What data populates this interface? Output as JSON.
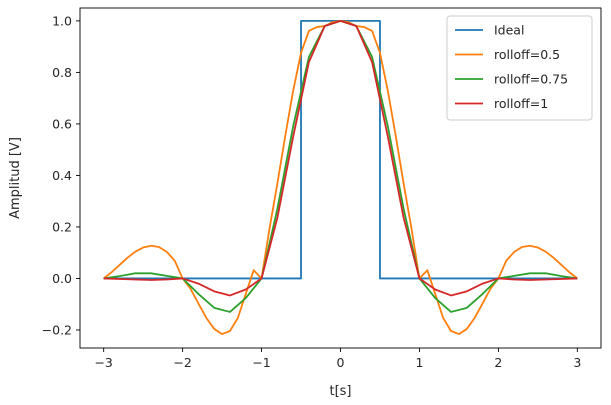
{
  "chart_data": {
    "type": "line",
    "title": "",
    "xlabel": "t[s]",
    "ylabel": "Amplitud [V]",
    "xlim": [
      -3.3,
      3.3
    ],
    "ylim": [
      -0.27,
      1.05
    ],
    "xticks": [
      -3,
      -2,
      -1,
      0,
      1,
      2,
      3
    ],
    "xtick_labels": [
      "−3",
      "−2",
      "−1",
      "0",
      "1",
      "2",
      "3"
    ],
    "yticks": [
      -0.2,
      0.0,
      0.2,
      0.4,
      0.6,
      0.8,
      1.0
    ],
    "ytick_labels": [
      "−0.2",
      "0.0",
      "0.2",
      "0.4",
      "0.6",
      "0.8",
      "1.0"
    ],
    "grid": false,
    "legend_position": "top-right",
    "series": [
      {
        "name": "Ideal",
        "color": "#1f77b4",
        "x": [
          -3,
          -0.5,
          -0.5,
          0.5,
          0.5,
          3
        ],
        "y": [
          0,
          0,
          1,
          1,
          0,
          0
        ]
      },
      {
        "name": "rolloff=0.5",
        "color": "#ff7f0e",
        "x": [
          -3.0,
          -2.9,
          -2.8,
          -2.7,
          -2.6,
          -2.5,
          -2.4,
          -2.3,
          -2.2,
          -2.1,
          -2.0,
          -1.9,
          -1.8,
          -1.7,
          -1.6,
          -1.5,
          -1.4,
          -1.3,
          -1.2,
          -1.1,
          -1.0,
          -0.9,
          -0.8,
          -0.7,
          -0.6,
          -0.5,
          -0.4,
          -0.3,
          -0.2,
          -0.1,
          0.0,
          0.1,
          0.2,
          0.3,
          0.4,
          0.5,
          0.6,
          0.7,
          0.8,
          0.9,
          1.0,
          1.1,
          1.2,
          1.3,
          1.4,
          1.5,
          1.6,
          1.7,
          1.8,
          1.9,
          2.0,
          2.1,
          2.2,
          2.3,
          2.4,
          2.5,
          2.6,
          2.7,
          2.8,
          2.9,
          3.0
        ],
        "y": [
          0.0,
          0.024,
          0.052,
          0.08,
          0.104,
          0.12,
          0.127,
          0.122,
          0.103,
          0.069,
          0.0,
          -0.04,
          -0.097,
          -0.153,
          -0.196,
          -0.216,
          -0.204,
          -0.153,
          -0.06,
          0.032,
          0.0,
          0.192,
          0.368,
          0.553,
          0.728,
          0.876,
          0.961,
          0.976,
          0.98,
          0.995,
          1.0,
          0.995,
          0.98,
          0.976,
          0.961,
          0.876,
          0.728,
          0.553,
          0.368,
          0.192,
          0.0,
          0.032,
          -0.06,
          -0.153,
          -0.204,
          -0.216,
          -0.196,
          -0.153,
          -0.097,
          -0.04,
          0.0,
          0.069,
          0.103,
          0.122,
          0.127,
          0.12,
          0.104,
          0.08,
          0.052,
          0.024,
          0.0
        ]
      },
      {
        "name": "rolloff=0.75",
        "color": "#2ca02c",
        "x": [
          -3.0,
          -2.8,
          -2.6,
          -2.4,
          -2.2,
          -2.0,
          -1.8,
          -1.6,
          -1.4,
          -1.2,
          -1.0,
          -0.8,
          -0.6,
          -0.4,
          -0.2,
          0.0,
          0.2,
          0.4,
          0.6,
          0.8,
          1.0,
          1.2,
          1.4,
          1.6,
          1.8,
          2.0,
          2.2,
          2.4,
          2.6,
          2.8,
          3.0
        ],
        "y": [
          0.0,
          0.009,
          0.02,
          0.02,
          0.01,
          0.0,
          -0.06,
          -0.114,
          -0.13,
          -0.076,
          0.0,
          0.27,
          0.59,
          0.86,
          0.98,
          1.0,
          0.98,
          0.86,
          0.59,
          0.27,
          0.0,
          -0.076,
          -0.13,
          -0.114,
          -0.06,
          0.0,
          0.01,
          0.02,
          0.02,
          0.009,
          0.0
        ]
      },
      {
        "name": "rolloff=1",
        "color": "#d62728",
        "x": [
          -3.0,
          -2.8,
          -2.6,
          -2.4,
          -2.2,
          -2.0,
          -1.8,
          -1.6,
          -1.4,
          -1.2,
          -1.0,
          -0.8,
          -0.6,
          -0.4,
          -0.2,
          0.0,
          0.2,
          0.4,
          0.6,
          0.8,
          1.0,
          1.2,
          1.4,
          1.6,
          1.8,
          2.0,
          2.2,
          2.4,
          2.6,
          2.8,
          3.0
        ],
        "y": [
          0.0,
          -0.002,
          -0.004,
          -0.006,
          -0.004,
          0.0,
          -0.02,
          -0.05,
          -0.066,
          -0.043,
          0.0,
          0.235,
          0.55,
          0.84,
          0.98,
          1.0,
          0.98,
          0.84,
          0.55,
          0.235,
          0.0,
          -0.043,
          -0.066,
          -0.05,
          -0.02,
          0.0,
          -0.004,
          -0.006,
          -0.004,
          -0.002,
          0.0
        ]
      }
    ]
  }
}
